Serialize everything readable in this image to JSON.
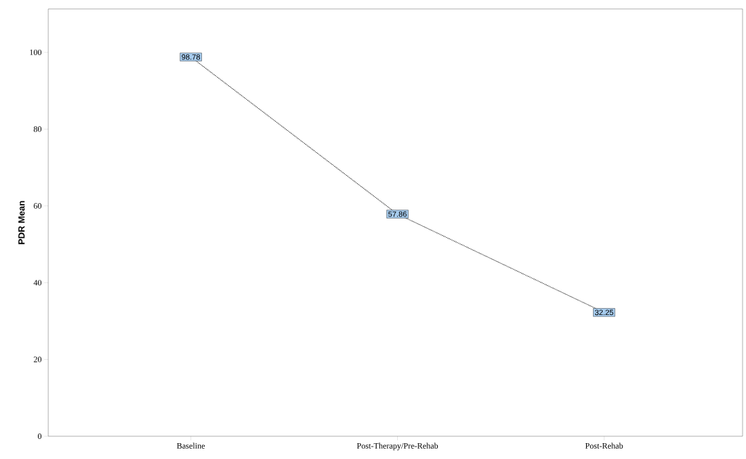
{
  "chart_data": {
    "type": "line",
    "ylabel": "PDR Mean",
    "categories": [
      "Baseline",
      "Post-Therapy/Pre-Rehab",
      "Post-Rehab"
    ],
    "values": [
      98.78,
      57.86,
      32.25
    ],
    "color": "#333333",
    "ylim": [
      0,
      111.3
    ],
    "yticks": [
      0,
      20,
      40,
      60,
      80,
      100
    ],
    "data_labels": true,
    "marker": "square",
    "line_style": "dotted"
  }
}
